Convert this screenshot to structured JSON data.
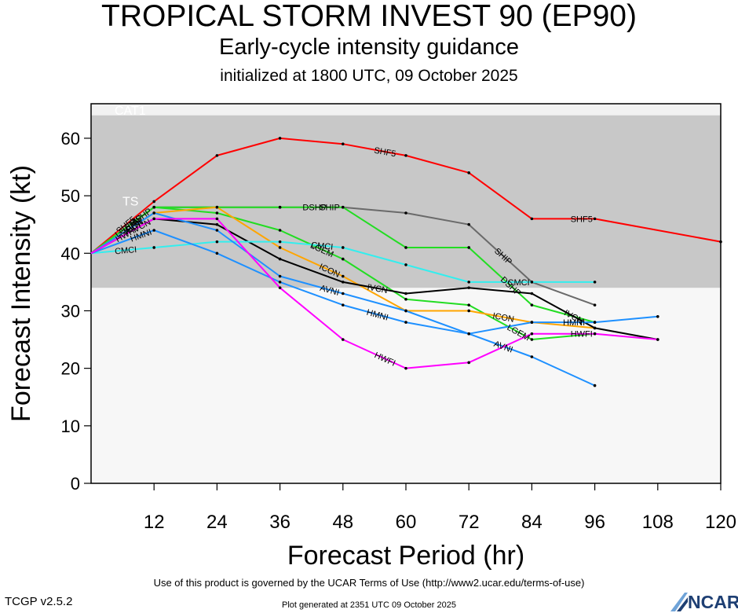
{
  "header": {
    "title": "TROPICAL STORM INVEST 90 (EP90)",
    "subtitle": "Early-cycle intensity guidance",
    "init": "initialized at 1800 UTC, 09 October 2025"
  },
  "footer": {
    "terms": "Use of this product is governed by the UCAR Terms of Use (http://www2.ucar.edu/terms-of-use)",
    "version": "TCGP v2.5.2",
    "generated": "Plot generated at 2351 UTC   09 October 2025",
    "logo": "NCAR"
  },
  "chart_data": {
    "type": "line",
    "xlabel": "Forecast Period (hr)",
    "ylabel": "Forecast Intensity (kt)",
    "xlim": [
      0,
      120
    ],
    "ylim": [
      0,
      66
    ],
    "xticks": [
      12,
      24,
      36,
      48,
      60,
      72,
      84,
      96,
      108,
      120
    ],
    "yticks": [
      0,
      10,
      20,
      30,
      40,
      50,
      60
    ],
    "bands": [
      {
        "label": "TS",
        "from": 34,
        "to": 64,
        "color": "#c8c8c8"
      },
      {
        "label": "CAT1",
        "from": 64,
        "to": 66,
        "color": "#f2f2f2"
      }
    ],
    "below_band_color": "#f7f7f7",
    "series": [
      {
        "name": "SHF5",
        "color": "#ff0000",
        "x": [
          0,
          12,
          24,
          36,
          48,
          60,
          72,
          84,
          96,
          120
        ],
        "y": [
          40,
          49,
          57,
          60,
          59,
          57,
          54,
          46,
          46,
          42
        ]
      },
      {
        "name": "SHIP",
        "color": "#6a6a6a",
        "x": [
          0,
          12,
          24,
          36,
          48,
          60,
          72,
          84,
          96
        ],
        "y": [
          40,
          48,
          48,
          48,
          48,
          47,
          45,
          35,
          31
        ]
      },
      {
        "name": "DSHP",
        "color": "#22dd22",
        "x": [
          0,
          12,
          24,
          36,
          48,
          60,
          72,
          84,
          96
        ],
        "y": [
          40,
          48,
          48,
          48,
          48,
          41,
          41,
          31,
          28
        ]
      },
      {
        "name": "LGEM",
        "color": "#22dd22",
        "x": [
          0,
          12,
          24,
          36,
          48,
          60,
          72,
          84,
          96
        ],
        "y": [
          40,
          48,
          47,
          44,
          39,
          32,
          31,
          25,
          26
        ]
      },
      {
        "name": "ICON",
        "color": "#ffa500",
        "x": [
          0,
          12,
          24,
          36,
          48,
          60,
          72,
          84,
          96
        ],
        "y": [
          40,
          47,
          48,
          41,
          36,
          30,
          30,
          28,
          27
        ]
      },
      {
        "name": "IVCN",
        "color": "#000000",
        "x": [
          0,
          12,
          24,
          36,
          48,
          60,
          72,
          84,
          96,
          108
        ],
        "y": [
          40,
          46,
          45,
          39,
          35,
          33,
          34,
          33,
          27,
          25
        ]
      },
      {
        "name": "CMCI",
        "color": "#33eeee",
        "x": [
          0,
          12,
          24,
          36,
          48,
          60,
          72,
          84,
          96
        ],
        "y": [
          40,
          41,
          42,
          42,
          41,
          38,
          35,
          35,
          35
        ]
      },
      {
        "name": "AVNI",
        "color": "#1e90ff",
        "x": [
          0,
          12,
          24,
          36,
          48,
          60,
          72,
          84,
          96
        ],
        "y": [
          40,
          47,
          44,
          36,
          33,
          30,
          26,
          22,
          17
        ]
      },
      {
        "name": "HMNI",
        "color": "#1e90ff",
        "x": [
          0,
          12,
          24,
          36,
          48,
          60,
          72,
          84,
          96,
          108
        ],
        "y": [
          40,
          44,
          40,
          35,
          31,
          28,
          26,
          28,
          28,
          29
        ]
      },
      {
        "name": "HWFI",
        "color": "#ff00ff",
        "x": [
          0,
          12,
          24,
          36,
          48,
          60,
          72,
          84,
          96,
          108
        ],
        "y": [
          40,
          46,
          46,
          34,
          25,
          20,
          21,
          26,
          26,
          25
        ]
      }
    ]
  }
}
